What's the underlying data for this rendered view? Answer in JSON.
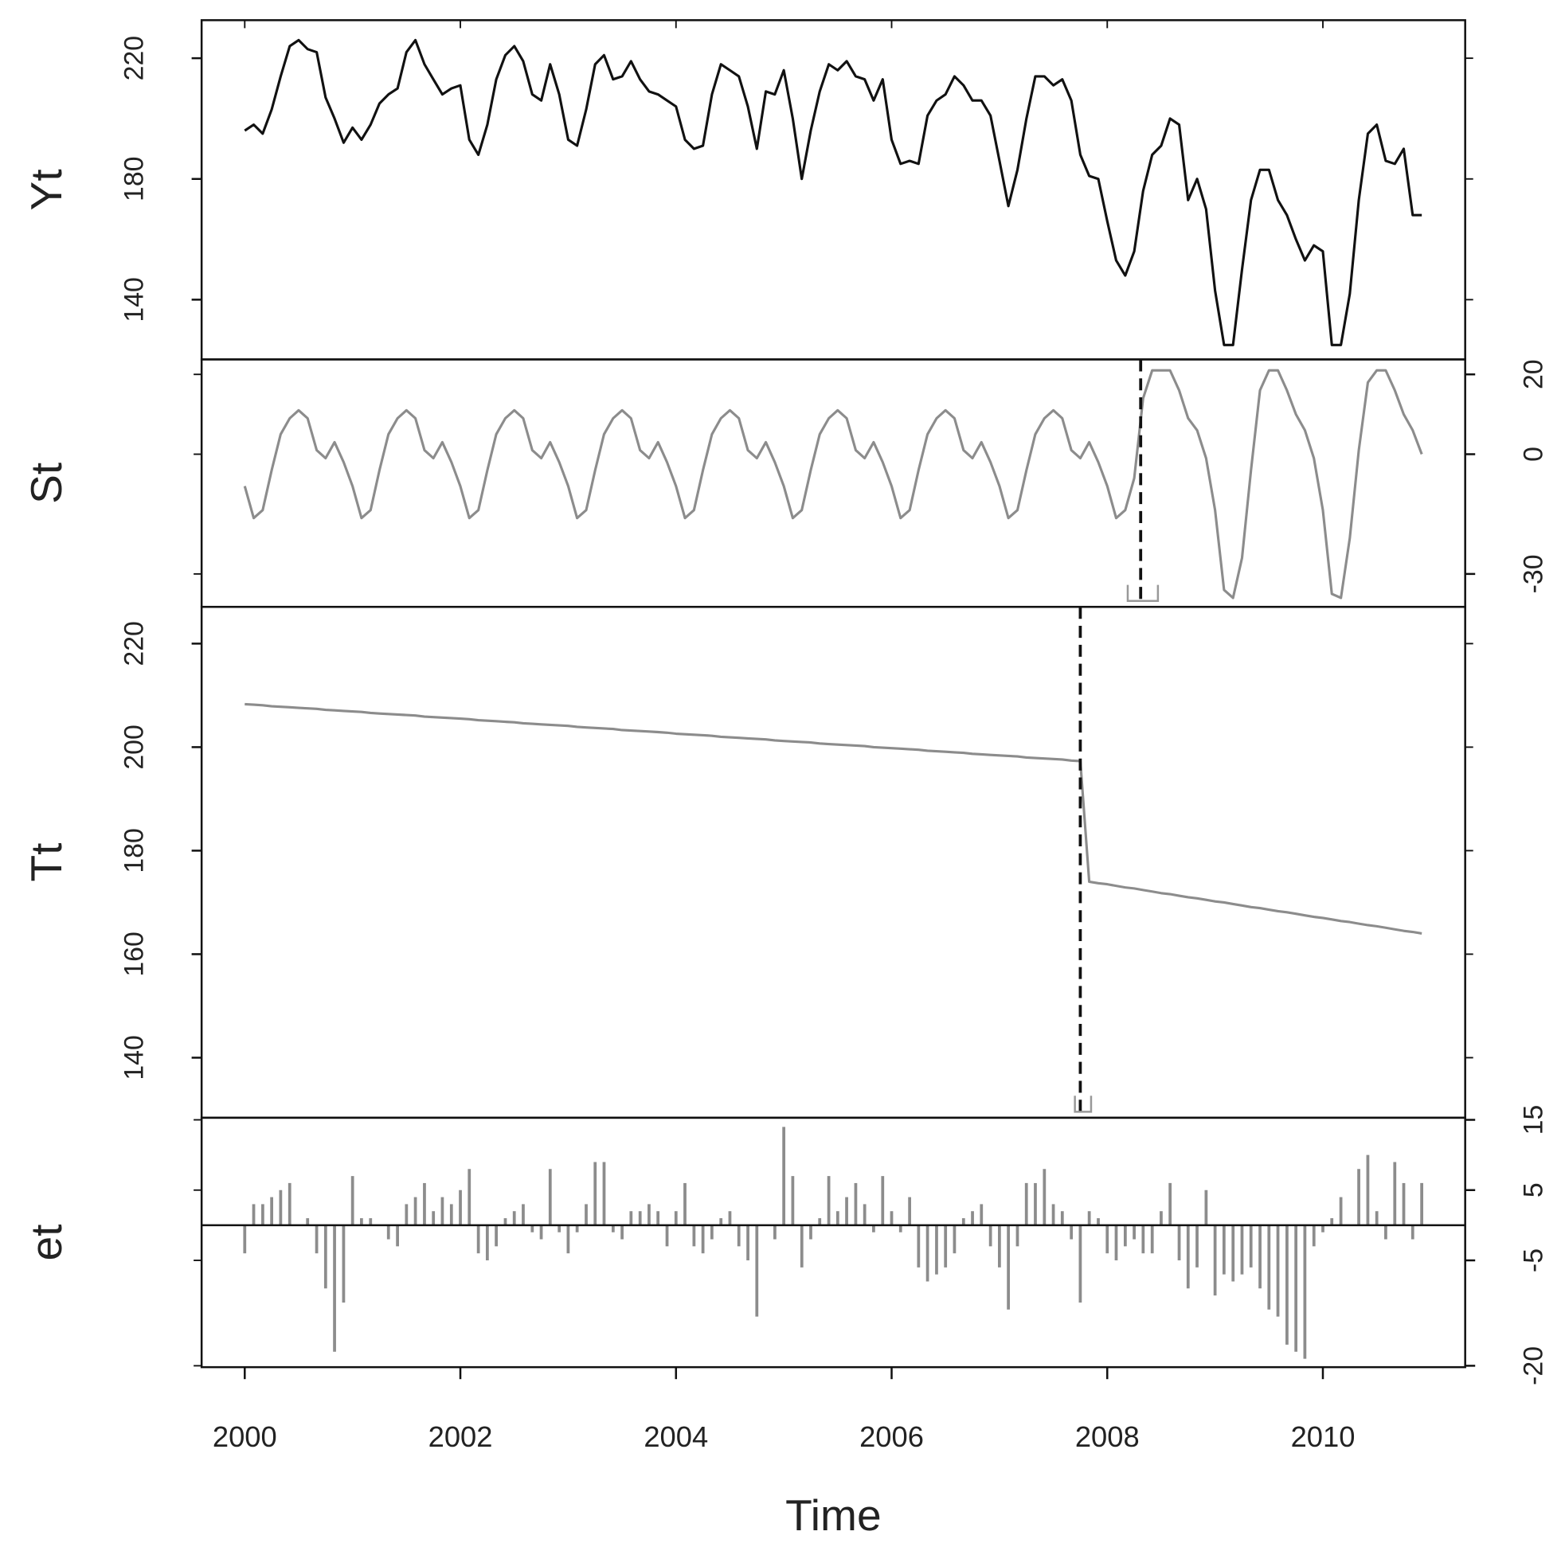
{
  "chart_data": {
    "type": "decomposition",
    "xlabel": "Time",
    "xlim": [
      1999.6,
      2011.32
    ],
    "xticks": [
      2000,
      2002,
      2004,
      2006,
      2008,
      2010
    ],
    "x": [
      2000,
      2000.083,
      2000.167,
      2000.25,
      2000.333,
      2000.417,
      2000.5,
      2000.583,
      2000.667,
      2000.75,
      2000.833,
      2000.917,
      2001,
      2001.083,
      2001.167,
      2001.25,
      2001.333,
      2001.417,
      2001.5,
      2001.583,
      2001.667,
      2001.75,
      2001.833,
      2001.917,
      2002,
      2002.083,
      2002.167,
      2002.25,
      2002.333,
      2002.417,
      2002.5,
      2002.583,
      2002.667,
      2002.75,
      2002.833,
      2002.917,
      2003,
      2003.083,
      2003.167,
      2003.25,
      2003.333,
      2003.417,
      2003.5,
      2003.583,
      2003.667,
      2003.75,
      2003.833,
      2003.917,
      2004,
      2004.083,
      2004.167,
      2004.25,
      2004.333,
      2004.417,
      2004.5,
      2004.583,
      2004.667,
      2004.75,
      2004.833,
      2004.917,
      2005,
      2005.083,
      2005.167,
      2005.25,
      2005.333,
      2005.417,
      2005.5,
      2005.583,
      2005.667,
      2005.75,
      2005.833,
      2005.917,
      2006,
      2006.083,
      2006.167,
      2006.25,
      2006.333,
      2006.417,
      2006.5,
      2006.583,
      2006.667,
      2006.75,
      2006.833,
      2006.917,
      2007,
      2007.083,
      2007.167,
      2007.25,
      2007.333,
      2007.417,
      2007.5,
      2007.583,
      2007.667,
      2007.75,
      2007.833,
      2007.917,
      2008,
      2008.083,
      2008.167,
      2008.25,
      2008.333,
      2008.417,
      2008.5,
      2008.583,
      2008.667,
      2008.75,
      2008.833,
      2008.917,
      2009,
      2009.083,
      2009.167,
      2009.25,
      2009.333,
      2009.417,
      2009.5,
      2009.583,
      2009.667,
      2009.75,
      2009.833,
      2009.917,
      2010,
      2010.083,
      2010.167,
      2010.25,
      2010.333,
      2010.417,
      2010.5,
      2010.583,
      2010.667,
      2010.75,
      2010.833,
      2010.917
    ],
    "panels": [
      {
        "type": "line",
        "ylabel": "Yt",
        "color": "#111111",
        "axis_side": "left",
        "ylim": [
          120.2,
          232.6
        ],
        "yticks": [
          140,
          180,
          220
        ],
        "values": [
          196,
          198,
          195,
          203,
          214,
          224,
          226,
          223,
          222,
          207,
          200,
          192,
          197,
          193,
          198,
          205,
          208,
          210,
          222,
          226,
          218,
          213,
          208,
          210,
          211,
          193,
          188,
          198,
          213,
          221,
          224,
          219,
          208,
          206,
          218,
          208,
          193,
          191,
          203,
          218,
          221,
          213,
          214,
          219,
          213,
          209,
          208,
          206,
          204,
          193,
          190,
          191,
          208,
          218,
          216,
          214,
          204,
          190,
          209,
          208,
          216,
          200,
          180,
          196,
          209,
          218,
          216,
          219,
          214,
          213,
          206,
          213,
          193,
          185,
          186,
          185,
          201,
          206,
          208,
          214,
          211,
          206,
          206,
          201,
          186,
          171,
          183,
          200,
          214,
          214,
          211,
          213,
          206,
          188,
          181,
          180,
          166,
          153,
          148,
          156,
          176,
          188,
          191,
          200,
          198,
          173,
          180,
          170,
          143,
          125,
          125,
          150,
          173,
          183,
          183,
          173,
          168,
          160,
          153,
          158,
          156,
          125,
          125,
          142,
          173,
          195,
          198,
          186,
          185,
          190,
          168,
          168
        ]
      },
      {
        "type": "line",
        "ylabel": "St",
        "color": "#8c8c8c",
        "axis_side": "right",
        "ylim": [
          -38.25,
          23.75
        ],
        "yticks": [
          20,
          0,
          -30
        ],
        "breakpoint": 2008.31,
        "breakpoint_ci": [
          2008.19,
          2008.47
        ],
        "values": [
          -8,
          -16,
          -14,
          -4,
          5,
          9,
          11,
          9,
          1,
          -1,
          3,
          -2,
          -8,
          -16,
          -14,
          -4,
          5,
          9,
          11,
          9,
          1,
          -1,
          3,
          -2,
          -8,
          -16,
          -14,
          -4,
          5,
          9,
          11,
          9,
          1,
          -1,
          3,
          -2,
          -8,
          -16,
          -14,
          -4,
          5,
          9,
          11,
          9,
          1,
          -1,
          3,
          -2,
          -8,
          -16,
          -14,
          -4,
          5,
          9,
          11,
          9,
          1,
          -1,
          3,
          -2,
          -8,
          -16,
          -14,
          -4,
          5,
          9,
          11,
          9,
          1,
          -1,
          3,
          -2,
          -8,
          -16,
          -14,
          -4,
          5,
          9,
          11,
          9,
          1,
          -1,
          3,
          -2,
          -8,
          -16,
          -14,
          -4,
          5,
          9,
          11,
          9,
          1,
          -1,
          3,
          -2,
          -8,
          -16,
          -14,
          -6,
          14,
          21,
          21,
          21,
          16,
          9,
          6,
          -1,
          -14,
          -34,
          -36,
          -26,
          -4,
          16,
          21,
          21,
          16,
          10,
          6,
          -1,
          -14,
          -35,
          -36,
          -21,
          1,
          18,
          21,
          21,
          16,
          10,
          6,
          0
        ]
      },
      {
        "type": "line",
        "ylabel": "Tt",
        "color": "#8c8c8c",
        "axis_side": "left",
        "ylim": [
          128.4,
          227.1
        ],
        "yticks": [
          140,
          160,
          180,
          200,
          220
        ],
        "breakpoint": 2007.75,
        "breakpoint_ci": [
          2007.7,
          2007.85
        ],
        "values": [
          208.3,
          208.2,
          208.1,
          207.9,
          207.8,
          207.7,
          207.6,
          207.5,
          207.4,
          207.2,
          207.1,
          207.0,
          206.9,
          206.8,
          206.6,
          206.5,
          206.4,
          206.3,
          206.2,
          206.1,
          205.9,
          205.8,
          205.7,
          205.6,
          205.5,
          205.4,
          205.2,
          205.1,
          205.0,
          204.9,
          204.8,
          204.6,
          204.5,
          204.4,
          204.3,
          204.2,
          204.1,
          203.9,
          203.8,
          203.7,
          203.6,
          203.5,
          203.3,
          203.2,
          203.1,
          203.0,
          202.9,
          202.8,
          202.6,
          202.5,
          202.4,
          202.3,
          202.2,
          202.0,
          201.9,
          201.8,
          201.7,
          201.6,
          201.5,
          201.3,
          201.2,
          201.1,
          201.0,
          200.9,
          200.7,
          200.6,
          200.5,
          200.4,
          200.3,
          200.2,
          200.0,
          199.9,
          199.8,
          199.7,
          199.6,
          199.5,
          199.3,
          199.2,
          199.1,
          199.0,
          198.9,
          198.7,
          198.6,
          198.5,
          198.4,
          198.3,
          198.2,
          198.0,
          197.9,
          197.8,
          197.7,
          197.6,
          197.4,
          197.3,
          174.0,
          173.7,
          173.5,
          173.2,
          172.9,
          172.7,
          172.4,
          172.1,
          171.8,
          171.6,
          171.3,
          171.0,
          170.8,
          170.5,
          170.2,
          170.0,
          169.7,
          169.4,
          169.1,
          168.9,
          168.6,
          168.3,
          168.1,
          167.8,
          167.5,
          167.2,
          167.0,
          166.7,
          166.4,
          166.2,
          165.9,
          165.6,
          165.4,
          165.1,
          164.8,
          164.5,
          164.3,
          164.0
        ]
      },
      {
        "type": "bar",
        "ylabel": "et",
        "color": "#8c8c8c",
        "axis_side": "right",
        "ylim": [
          -20.2,
          15.3
        ],
        "yticks": [
          15,
          5,
          -5,
          -20
        ],
        "values": [
          -4,
          3,
          3,
          4,
          5,
          6,
          0,
          1,
          -4,
          -9,
          -18,
          -11,
          7,
          1,
          1,
          0,
          -2,
          -3,
          3,
          4,
          6,
          2,
          4,
          3,
          5,
          8,
          -4,
          -5,
          -3,
          1,
          2,
          3,
          -1,
          -2,
          8,
          -1,
          -4,
          -1,
          3,
          9,
          9,
          -1,
          -2,
          2,
          2,
          3,
          2,
          -3,
          2,
          6,
          -3,
          -4,
          -2,
          1,
          2,
          -3,
          -5,
          -13,
          0,
          -2,
          14,
          7,
          -6,
          -2,
          1,
          7,
          2,
          4,
          6,
          3,
          -1,
          7,
          2,
          -1,
          4,
          -6,
          -8,
          -7,
          -6,
          -4,
          1,
          2,
          3,
          -3,
          -6,
          -12,
          -3,
          6,
          6,
          8,
          3,
          2,
          -2,
          -11,
          2,
          1,
          -4,
          -5,
          -3,
          -2,
          -4,
          -4,
          2,
          6,
          -5,
          -9,
          -6,
          5,
          -10,
          -7,
          -8,
          -7,
          -6,
          -9,
          -12,
          -13,
          -17,
          -18,
          -19,
          -3,
          -1,
          1,
          4,
          0,
          8,
          10,
          2,
          -2,
          9,
          6,
          -2,
          6
        ]
      }
    ]
  }
}
